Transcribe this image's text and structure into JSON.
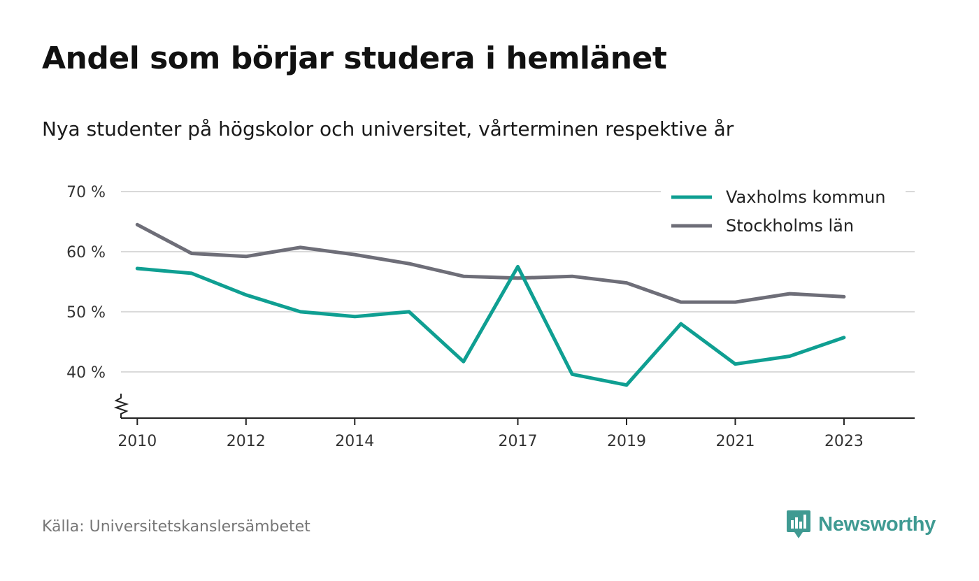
{
  "header": {
    "title": "Andel som börjar studera i hemlänet",
    "subtitle": "Nya studenter på högskolor och universitet, vårterminen respektive år"
  },
  "footer": {
    "source": "Källa: Universitetskanslersämbetet",
    "brand": "Newsworthy",
    "brand_icon": "newsworthy-logo-icon",
    "brand_color": "#3f9a92"
  },
  "chart_data": {
    "type": "line",
    "title": "Andel som börjar studera i hemlänet",
    "subtitle": "Nya studenter på högskolor och universitet, vårterminen respektive år",
    "xlabel": "",
    "ylabel": "",
    "x": [
      2010,
      2011,
      2012,
      2013,
      2014,
      2015,
      2016,
      2017,
      2018,
      2019,
      2020,
      2021,
      2022,
      2023
    ],
    "x_ticks": [
      "2010",
      "2012",
      "2014",
      "2017",
      "2019",
      "2021",
      "2023"
    ],
    "y_ticks": [
      "40 %",
      "50 %",
      "60 %",
      "70 %"
    ],
    "y_tick_values": [
      40,
      50,
      60,
      70
    ],
    "xlim": [
      2009.7,
      2024.3
    ],
    "ylim": [
      32.3,
      70
    ],
    "y_axis_break": true,
    "grid": "horizontal",
    "legend_position": "top-right",
    "series": [
      {
        "name": "Vaxholms kommun",
        "color": "#0f9f92",
        "values": [
          57.2,
          56.4,
          52.8,
          50.0,
          49.2,
          50.0,
          41.7,
          57.5,
          39.6,
          37.8,
          48.0,
          41.3,
          42.6,
          45.7
        ]
      },
      {
        "name": "Stockholms län",
        "color": "#6e6e78",
        "values": [
          64.5,
          59.7,
          59.2,
          60.7,
          59.5,
          58.0,
          55.9,
          55.6,
          55.9,
          54.8,
          51.6,
          51.6,
          53.0,
          52.5
        ]
      }
    ]
  }
}
